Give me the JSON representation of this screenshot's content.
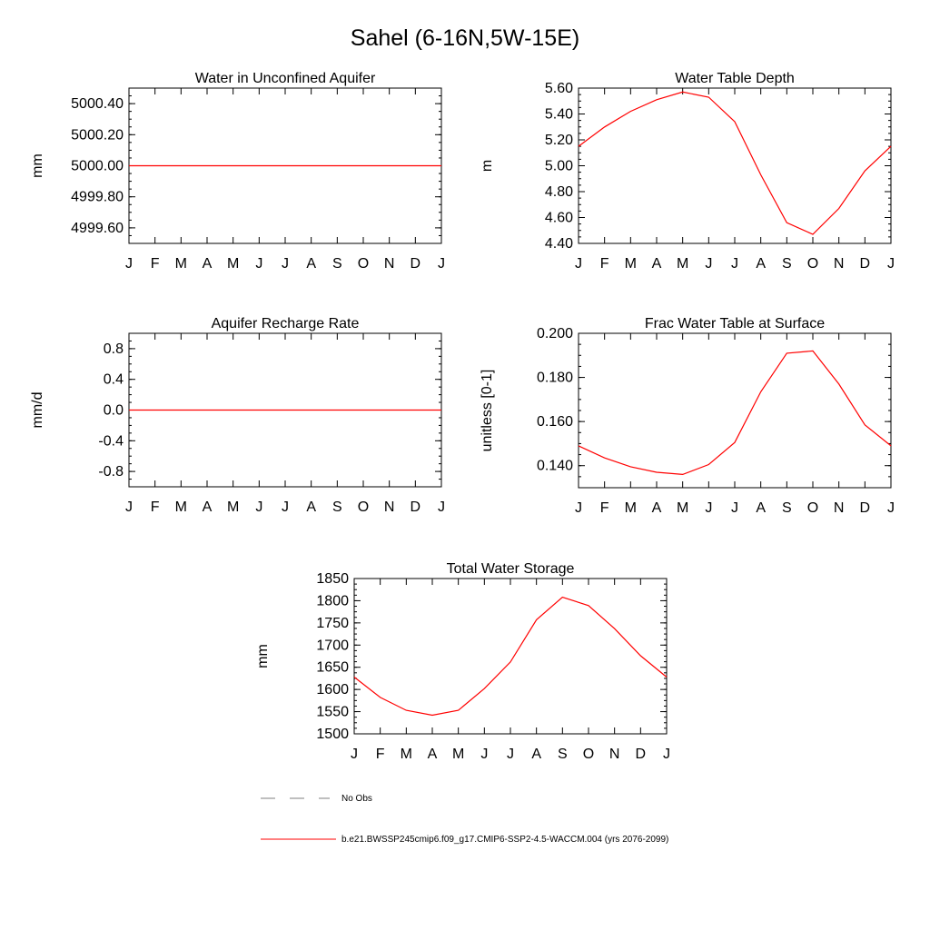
{
  "figure": {
    "title": "Sahel (6-16N,5W-15E)"
  },
  "colors": {
    "series": "#ff0000",
    "obs": "#7f7f7f",
    "axis": "#000000"
  },
  "months": [
    "J",
    "F",
    "M",
    "A",
    "M",
    "J",
    "J",
    "A",
    "S",
    "O",
    "N",
    "D",
    "J"
  ],
  "chart_data": [
    {
      "id": "water-in-unconfined-aquifer",
      "type": "line",
      "title": "Water in Unconfined Aquifer",
      "ylabel": "mm",
      "ylim": [
        4999.5,
        5000.5
      ],
      "yticks": [
        "4999.60",
        "4999.80",
        "5000.00",
        "5000.20",
        "5000.40"
      ],
      "x": [
        "J",
        "F",
        "M",
        "A",
        "M",
        "J",
        "J",
        "A",
        "S",
        "O",
        "N",
        "D",
        "J"
      ],
      "values": [
        5000.0,
        5000.0,
        5000.0,
        5000.0,
        5000.0,
        5000.0,
        5000.0,
        5000.0,
        5000.0,
        5000.0,
        5000.0,
        5000.0,
        5000.0
      ]
    },
    {
      "id": "water-table-depth",
      "type": "line",
      "title": "Water Table Depth",
      "ylabel": "m",
      "ylim": [
        4.4,
        5.6
      ],
      "yticks": [
        "4.40",
        "4.60",
        "4.80",
        "5.00",
        "5.20",
        "5.40",
        "5.60"
      ],
      "x": [
        "J",
        "F",
        "M",
        "A",
        "M",
        "J",
        "J",
        "A",
        "S",
        "O",
        "N",
        "D",
        "J"
      ],
      "values": [
        5.15,
        5.3,
        5.42,
        5.51,
        5.57,
        5.53,
        5.34,
        4.93,
        4.56,
        4.47,
        4.67,
        4.96,
        5.15
      ]
    },
    {
      "id": "aquifer-recharge-rate",
      "type": "line",
      "title": "Aquifer Recharge Rate",
      "ylabel": "mm/d",
      "ylim": [
        -1.0,
        1.0
      ],
      "yticks": [
        "-0.8",
        "-0.4",
        "0.0",
        "0.4",
        "0.8"
      ],
      "x": [
        "J",
        "F",
        "M",
        "A",
        "M",
        "J",
        "J",
        "A",
        "S",
        "O",
        "N",
        "D",
        "J"
      ],
      "values": [
        0,
        0,
        0,
        0,
        0,
        0,
        0,
        0,
        0,
        0,
        0,
        0,
        0
      ]
    },
    {
      "id": "frac-water-table-at-surface",
      "type": "line",
      "title": "Frac Water Table at Surface",
      "ylabel": "unitless [0-1]",
      "ylim": [
        0.13,
        0.2
      ],
      "yticks": [
        "0.140",
        "0.160",
        "0.180",
        "0.200"
      ],
      "x": [
        "J",
        "F",
        "M",
        "A",
        "M",
        "J",
        "J",
        "A",
        "S",
        "O",
        "N",
        "D",
        "J"
      ],
      "values": [
        0.149,
        0.1435,
        0.1395,
        0.137,
        0.136,
        0.1405,
        0.1505,
        0.1735,
        0.191,
        0.192,
        0.177,
        0.1585,
        0.149
      ]
    },
    {
      "id": "total-water-storage",
      "type": "line",
      "title": "Total Water Storage",
      "ylabel": "mm",
      "ylim": [
        1500,
        1850
      ],
      "yticks": [
        "1500",
        "1550",
        "1600",
        "1650",
        "1700",
        "1750",
        "1800",
        "1850"
      ],
      "x": [
        "J",
        "F",
        "M",
        "A",
        "M",
        "J",
        "J",
        "A",
        "S",
        "O",
        "N",
        "D",
        "J"
      ],
      "values": [
        1628,
        1582,
        1553,
        1542,
        1553,
        1602,
        1662,
        1757,
        1808,
        1789,
        1737,
        1676,
        1628
      ]
    }
  ],
  "legend": [
    {
      "label": "No Obs",
      "style": "dashed",
      "color": "#7f7f7f"
    },
    {
      "label": "b.e21.BWSSP245cmip6.f09_g17.CMIP6-SSP2-4.5-WACCM.004 (yrs 2076-2099)",
      "style": "solid",
      "color": "#ff0000"
    }
  ]
}
